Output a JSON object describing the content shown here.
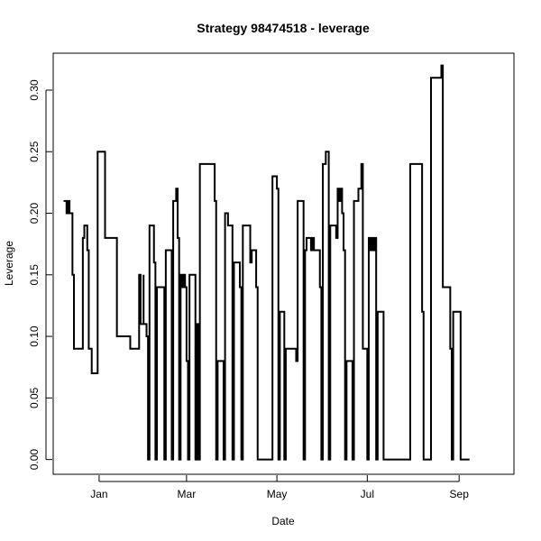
{
  "chart_data": {
    "type": "line",
    "line_style": "step",
    "title": "Strategy 98474518 - leverage",
    "xlabel": "Date",
    "ylabel": "Leverage",
    "x_unit": "date",
    "ylim": [
      -0.012,
      0.33
    ],
    "xlim": [
      "2012-12-01",
      "2013-10-08"
    ],
    "x_ticks": [
      {
        "label": "Jan",
        "date": "2013-01-01"
      },
      {
        "label": "Mar",
        "date": "2013-03-01"
      },
      {
        "label": "May",
        "date": "2013-05-01"
      },
      {
        "label": "Jul",
        "date": "2013-07-01"
      },
      {
        "label": "Sep",
        "date": "2013-09-01"
      }
    ],
    "y_ticks": [
      0.0,
      0.05,
      0.1,
      0.15,
      0.2,
      0.25,
      0.3
    ],
    "y_tick_labels": [
      "0.00",
      "0.05",
      "0.10",
      "0.15",
      "0.20",
      "0.25",
      "0.30"
    ],
    "grid": false,
    "series": [
      {
        "color": "#000000",
        "points": [
          [
            "2012-12-08",
            0.21
          ],
          [
            "2012-12-10",
            0.2
          ],
          [
            "2012-12-11",
            0.21
          ],
          [
            "2012-12-12",
            0.2
          ],
          [
            "2012-12-14",
            0.15
          ],
          [
            "2012-12-15",
            0.09
          ],
          [
            "2012-12-21",
            0.18
          ],
          [
            "2012-12-22",
            0.19
          ],
          [
            "2012-12-24",
            0.17
          ],
          [
            "2012-12-25",
            0.09
          ],
          [
            "2012-12-27",
            0.07
          ],
          [
            "2012-12-31",
            0.25
          ],
          [
            "2013-01-05",
            0.18
          ],
          [
            "2013-01-13",
            0.1
          ],
          [
            "2013-01-22",
            0.09
          ],
          [
            "2013-01-28",
            0.15
          ],
          [
            "2013-01-29",
            0.11
          ],
          [
            "2013-01-31",
            0.15
          ],
          [
            "2013-01-31",
            0.11
          ],
          [
            "2013-02-02",
            0.1
          ],
          [
            "2013-02-03",
            0.0
          ],
          [
            "2013-02-04",
            0.19
          ],
          [
            "2013-02-07",
            0.16
          ],
          [
            "2013-02-08",
            0.0
          ],
          [
            "2013-02-09",
            0.14
          ],
          [
            "2013-02-14",
            0.0
          ],
          [
            "2013-02-15",
            0.17
          ],
          [
            "2013-02-19",
            0.0
          ],
          [
            "2013-02-20",
            0.21
          ],
          [
            "2013-02-22",
            0.22
          ],
          [
            "2013-02-23",
            0.18
          ],
          [
            "2013-02-24",
            0.0
          ],
          [
            "2013-02-25",
            0.15
          ],
          [
            "2013-02-26",
            0.14
          ],
          [
            "2013-02-27",
            0.15
          ],
          [
            "2013-02-28",
            0.14
          ],
          [
            "2013-03-01",
            0.08
          ],
          [
            "2013-03-02",
            0.0
          ],
          [
            "2013-03-03",
            0.15
          ],
          [
            "2013-03-07",
            0.0
          ],
          [
            "2013-03-08",
            0.11
          ],
          [
            "2013-03-09",
            0.0
          ],
          [
            "2013-03-10",
            0.24
          ],
          [
            "2013-03-20",
            0.21
          ],
          [
            "2013-03-21",
            0.0
          ],
          [
            "2013-03-22",
            0.08
          ],
          [
            "2013-03-26",
            0.0
          ],
          [
            "2013-03-27",
            0.2
          ],
          [
            "2013-03-29",
            0.19
          ],
          [
            "2013-04-01",
            0.0
          ],
          [
            "2013-04-02",
            0.16
          ],
          [
            "2013-04-06",
            0.14
          ],
          [
            "2013-04-07",
            0.0
          ],
          [
            "2013-04-08",
            0.19
          ],
          [
            "2013-04-13",
            0.16
          ],
          [
            "2013-04-14",
            0.17
          ],
          [
            "2013-04-17",
            0.14
          ],
          [
            "2013-04-18",
            0.0
          ],
          [
            "2013-04-28",
            0.23
          ],
          [
            "2013-05-01",
            0.22
          ],
          [
            "2013-05-02",
            0.0
          ],
          [
            "2013-05-03",
            0.12
          ],
          [
            "2013-05-06",
            0.0
          ],
          [
            "2013-05-07",
            0.09
          ],
          [
            "2013-05-14",
            0.08
          ],
          [
            "2013-05-15",
            0.21
          ],
          [
            "2013-05-19",
            0.0
          ],
          [
            "2013-05-20",
            0.17
          ],
          [
            "2013-05-21",
            0.18
          ],
          [
            "2013-05-24",
            0.17
          ],
          [
            "2013-05-25",
            0.18
          ],
          [
            "2013-05-26",
            0.17
          ],
          [
            "2013-05-30",
            0.14
          ],
          [
            "2013-05-31",
            0.0
          ],
          [
            "2013-06-01",
            0.24
          ],
          [
            "2013-06-03",
            0.25
          ],
          [
            "2013-06-05",
            0.0
          ],
          [
            "2013-06-06",
            0.19
          ],
          [
            "2013-06-10",
            0.18
          ],
          [
            "2013-06-11",
            0.22
          ],
          [
            "2013-06-12",
            0.21
          ],
          [
            "2013-06-13",
            0.22
          ],
          [
            "2013-06-14",
            0.2
          ],
          [
            "2013-06-15",
            0.17
          ],
          [
            "2013-06-16",
            0.0
          ],
          [
            "2013-06-17",
            0.08
          ],
          [
            "2013-06-21",
            0.0
          ],
          [
            "2013-06-22",
            0.21
          ],
          [
            "2013-06-25",
            0.22
          ],
          [
            "2013-06-27",
            0.24
          ],
          [
            "2013-06-28",
            0.09
          ],
          [
            "2013-07-01",
            0.0
          ],
          [
            "2013-07-02",
            0.18
          ],
          [
            "2013-07-03",
            0.17
          ],
          [
            "2013-07-04",
            0.18
          ],
          [
            "2013-07-05",
            0.17
          ],
          [
            "2013-07-06",
            0.18
          ],
          [
            "2013-07-07",
            0.0
          ],
          [
            "2013-07-08",
            0.12
          ],
          [
            "2013-07-12",
            0.0
          ],
          [
            "2013-07-30",
            0.24
          ],
          [
            "2013-08-07",
            0.12
          ],
          [
            "2013-08-08",
            0.0
          ],
          [
            "2013-08-13",
            0.31
          ],
          [
            "2013-08-20",
            0.32
          ],
          [
            "2013-08-21",
            0.14
          ],
          [
            "2013-08-26",
            0.09
          ],
          [
            "2013-08-27",
            0.0
          ],
          [
            "2013-08-28",
            0.12
          ],
          [
            "2013-09-02",
            0.0
          ],
          [
            "2013-09-08",
            0.0
          ]
        ]
      }
    ]
  }
}
